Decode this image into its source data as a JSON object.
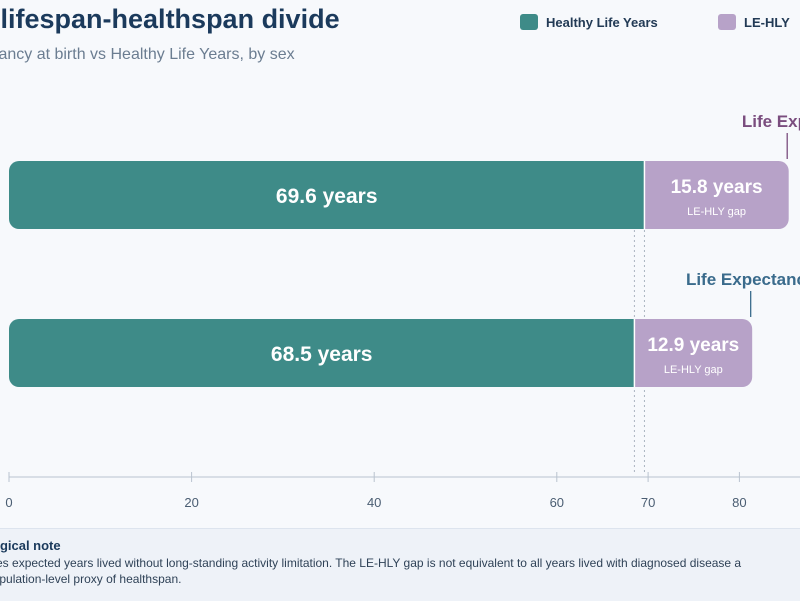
{
  "header": {
    "title": "s lifespan-healthspan divide",
    "subtitle": "tancy at birth vs Healthy Life Years, by sex"
  },
  "legend": [
    {
      "label": "Healthy Life Years",
      "color": "#3e8b88"
    },
    {
      "label": "LE-HLY",
      "color": "#b7a2c8"
    }
  ],
  "chart_data": {
    "type": "bar",
    "orientation": "horizontal",
    "stacked": true,
    "categories": [
      "",
      ""
    ],
    "series": [
      {
        "name": "Healthy Life Years",
        "values": [
          69.6,
          68.5
        ],
        "color": "#3e8b88",
        "value_labels": [
          "69.6 years",
          "68.5 years"
        ]
      },
      {
        "name": "LE-HLY",
        "values": [
          15.8,
          12.9
        ],
        "color": "#b7a2c8",
        "value_labels": [
          "15.8 years",
          "12.9 years"
        ],
        "sub_label": "LE-HLY gap"
      }
    ],
    "annotations": [
      {
        "text": "Life Expect",
        "color": "#7a4d7e"
      },
      {
        "text": "Life Expectancy",
        "color": "#3a6b8c"
      }
    ],
    "xticks": [
      0,
      20,
      40,
      60,
      70,
      80
    ],
    "xlim": [
      0,
      87
    ],
    "reference_lines": [
      68.5,
      69.6
    ]
  },
  "note": {
    "title": "ogical note",
    "text": "ates expected years lived without long-standing activity limitation. The LE-HLY gap is not equivalent to all years lived with diagnosed disease a population-level proxy of healthspan."
  }
}
